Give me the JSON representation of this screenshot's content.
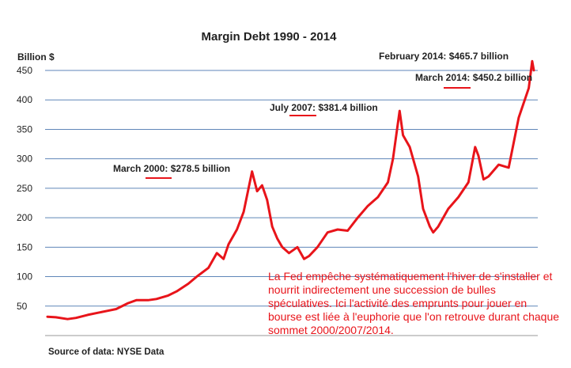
{
  "chart_data": {
    "type": "line",
    "title": "Margin Debt 1990 - 2014",
    "ylabel": "Billion $",
    "xlabel": "",
    "ylim": [
      0,
      450
    ],
    "yticks": [
      50,
      100,
      150,
      200,
      250,
      300,
      350,
      400,
      450
    ],
    "grid": true,
    "line_color": "#e8141a",
    "source": "Source of data: NYSE Data",
    "annotations": [
      {
        "text": "March 2000: $278.5 billion",
        "underlined": "2000",
        "date": "2000-03",
        "value": 278.5
      },
      {
        "text": "July 2007: $381.4 billion",
        "underlined": "2007",
        "date": "2007-07",
        "value": 381.4
      },
      {
        "text": "February 2014: $465.7 billion",
        "underlined": "",
        "date": "2014-02",
        "value": 465.7
      },
      {
        "text": "March 2014: $450.2 billion",
        "underlined": "2014",
        "date": "2014-03",
        "value": 450.2
      }
    ],
    "series": [
      {
        "x": [
          "1990-01",
          "1990-06",
          "1991-01",
          "1991-06",
          "1992-01",
          "1992-06",
          "1993-01",
          "1993-06",
          "1994-01",
          "1994-06",
          "1995-01",
          "1995-06",
          "1996-01",
          "1996-06",
          "1997-01",
          "1997-06",
          "1998-01",
          "1998-06",
          "1998-10",
          "1999-01",
          "1999-06",
          "1999-10",
          "2000-03",
          "2000-06",
          "2000-09",
          "2000-12",
          "2001-03",
          "2001-06",
          "2001-09",
          "2002-01",
          "2002-06",
          "2002-10",
          "2003-01",
          "2003-06",
          "2003-12",
          "2004-06",
          "2004-12",
          "2005-06",
          "2005-12",
          "2006-06",
          "2006-12",
          "2007-03",
          "2007-07",
          "2007-09",
          "2008-01",
          "2008-06",
          "2008-09",
          "2009-01",
          "2009-03",
          "2009-06",
          "2009-12",
          "2010-06",
          "2010-12",
          "2011-04",
          "2011-06",
          "2011-09",
          "2011-12",
          "2012-06",
          "2012-12",
          "2013-06",
          "2013-12",
          "2014-02",
          "2014-03"
        ],
        "values": [
          32,
          31,
          28,
          30,
          35,
          38,
          42,
          45,
          55,
          60,
          60,
          62,
          68,
          75,
          88,
          100,
          115,
          140,
          130,
          155,
          180,
          210,
          278.5,
          245,
          255,
          230,
          185,
          165,
          150,
          140,
          150,
          130,
          135,
          150,
          175,
          180,
          178,
          200,
          220,
          235,
          260,
          300,
          381.4,
          340,
          320,
          270,
          215,
          185,
          175,
          185,
          215,
          235,
          260,
          320,
          305,
          265,
          270,
          290,
          285,
          370,
          420,
          465.7,
          450.2
        ]
      }
    ]
  },
  "comment_text": "La Fed empêche systématiquement l'hiver de s'installer et nourrit indirectement une succession de bulles spéculatives. Ici l'activité des emprunts pour jouer en bourse est liée à l'euphorie que l'on retrouve durant chaque sommet 2000/2007/2014."
}
